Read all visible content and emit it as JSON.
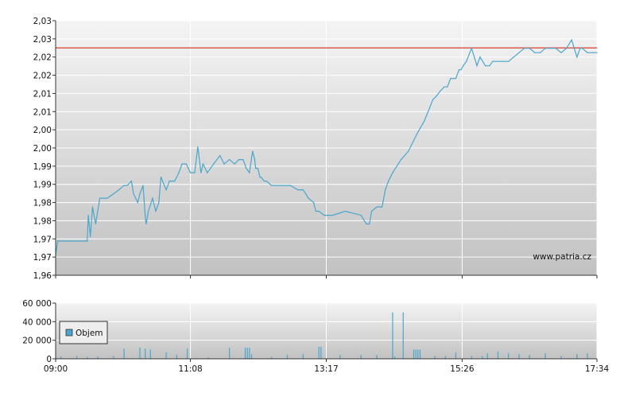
{
  "chart_data": [
    {
      "type": "line",
      "title": "",
      "xlabel": "",
      "ylabel": "",
      "ylim": [
        1.96,
        2.03
      ],
      "y_ticks": [
        "1,96",
        "1,97",
        "1,97",
        "1,98",
        "1,98",
        "1,99",
        "1,99",
        "2,00",
        "2,00",
        "2,01",
        "2,01",
        "2,02",
        "2,02",
        "2,03",
        "2,03"
      ],
      "x_tick_labels": [
        "09:00",
        "11:08",
        "13:17",
        "15:26",
        "17:34"
      ],
      "reference_line": {
        "value": 2.0225,
        "color": "#e05a4a"
      },
      "watermark": "www.patria.cz",
      "grid": true,
      "series": [
        {
          "color": "#4aa6cc",
          "x": [
            "09:00",
            "09:02",
            "09:08",
            "09:30",
            "09:31",
            "09:33",
            "09:35",
            "09:38",
            "09:42",
            "09:49",
            "09:55",
            "10:00",
            "10:05",
            "10:08",
            "10:12",
            "10:14",
            "10:18",
            "10:20",
            "10:23",
            "10:25",
            "10:26",
            "10:28",
            "10:32",
            "10:35",
            "10:38",
            "10:40",
            "10:45",
            "10:48",
            "10:53",
            "10:57",
            "11:00",
            "11:04",
            "11:08",
            "11:12",
            "11:15",
            "11:18",
            "11:20",
            "11:24",
            "11:30",
            "11:36",
            "11:40",
            "11:45",
            "11:50",
            "11:54",
            "11:58",
            "12:01",
            "12:04",
            "12:07",
            "12:09",
            "12:10",
            "12:12",
            "12:14",
            "12:15",
            "12:18",
            "12:20",
            "12:25",
            "12:30",
            "12:35",
            "12:43",
            "12:50",
            "12:55",
            "13:00",
            "13:05",
            "13:07",
            "13:10",
            "13:15",
            "13:17",
            "13:23",
            "13:35",
            "13:50",
            "13:55",
            "13:58",
            "14:00",
            "14:05",
            "14:10",
            "14:13",
            "14:16",
            "14:20",
            "14:28",
            "14:35",
            "14:43",
            "14:50",
            "14:55",
            "14:58",
            "15:02",
            "15:05",
            "15:09",
            "15:12",
            "15:15",
            "15:18",
            "15:20",
            "15:23",
            "15:25",
            "15:27",
            "15:30",
            "15:35",
            "15:40",
            "15:43",
            "15:48",
            "15:52",
            "15:55",
            "16:00",
            "16:05",
            "16:10",
            "16:15",
            "16:20",
            "16:25",
            "16:30",
            "16:35",
            "16:40",
            "16:45",
            "16:50",
            "16:55",
            "17:00",
            "17:05",
            "17:10",
            "17:15",
            "17:18",
            "17:20",
            "17:25",
            "17:30",
            "17:34"
          ],
          "values": [
            1.9655,
            1.9694,
            1.9694,
            1.9694,
            1.9765,
            1.9706,
            1.9788,
            1.9741,
            1.9812,
            1.9812,
            1.9824,
            1.9835,
            1.9847,
            1.9847,
            1.9859,
            1.9824,
            1.98,
            1.9824,
            1.9847,
            1.9765,
            1.9741,
            1.9776,
            1.9812,
            1.9776,
            1.98,
            1.987,
            1.9835,
            1.9859,
            1.9859,
            1.9882,
            1.9906,
            1.9906,
            1.9882,
            1.9882,
            1.9953,
            1.9882,
            1.9906,
            1.9882,
            1.9906,
            1.9929,
            1.9906,
            1.9918,
            1.9906,
            1.9918,
            1.9918,
            1.9894,
            1.9882,
            1.9941,
            1.9918,
            1.9894,
            1.9894,
            1.987,
            1.987,
            1.9859,
            1.9859,
            1.9847,
            1.9847,
            1.9847,
            1.9847,
            1.9835,
            1.9835,
            1.9812,
            1.98,
            1.9776,
            1.9776,
            1.9765,
            1.9765,
            1.9765,
            1.9776,
            1.9765,
            1.9741,
            1.9741,
            1.9776,
            1.9788,
            1.9788,
            1.9835,
            1.9859,
            1.9882,
            1.9918,
            1.9941,
            1.9988,
            2.0024,
            2.0059,
            2.0082,
            2.0094,
            2.0106,
            2.0118,
            2.0118,
            2.0141,
            2.0141,
            2.0141,
            2.0165,
            2.0165,
            2.0176,
            2.0188,
            2.0224,
            2.0176,
            2.02,
            2.0176,
            2.0176,
            2.0188,
            2.0188,
            2.0188,
            2.0188,
            2.02,
            2.0212,
            2.0224,
            2.0224,
            2.0212,
            2.0212,
            2.0224,
            2.0224,
            2.0224,
            2.0212,
            2.0224,
            2.0247,
            2.02,
            2.0224,
            2.0224,
            2.0212,
            2.0212,
            2.0212
          ]
        }
      ]
    },
    {
      "type": "bar",
      "title": "",
      "xlabel": "",
      "ylabel": "",
      "ylim": [
        0,
        60000
      ],
      "y_ticks": [
        "0",
        "20 000",
        "40 000",
        "60 000"
      ],
      "x_tick_labels": [
        "09:00",
        "11:08",
        "13:17",
        "15:26",
        "17:34"
      ],
      "legend": {
        "label": "Objem",
        "color": "#4aa6cc",
        "position": "left"
      },
      "series": [
        {
          "name": "Objem",
          "x": [
            "09:05",
            "09:20",
            "09:30",
            "09:40",
            "09:55",
            "10:05",
            "10:20",
            "10:25",
            "10:30",
            "10:45",
            "10:55",
            "11:05",
            "11:25",
            "11:45",
            "12:00",
            "12:02",
            "12:04",
            "12:06",
            "12:25",
            "12:40",
            "12:55",
            "13:10",
            "13:12",
            "13:30",
            "13:50",
            "14:05",
            "14:20",
            "14:22",
            "14:30",
            "14:40",
            "14:42",
            "14:44",
            "14:46",
            "15:00",
            "15:10",
            "15:20",
            "15:35",
            "15:45",
            "15:50",
            "16:00",
            "16:10",
            "16:20",
            "16:30",
            "16:45",
            "17:00",
            "17:15",
            "17:25"
          ],
          "values": [
            2500,
            3000,
            2000,
            2500,
            3000,
            11000,
            12000,
            11000,
            10000,
            7000,
            4000,
            11000,
            1500,
            12000,
            12000,
            12000,
            12000,
            5000,
            2000,
            4000,
            5000,
            13000,
            13000,
            4000,
            4000,
            4000,
            50000,
            2500,
            50000,
            10000,
            10000,
            10000,
            10000,
            3000,
            3000,
            7000,
            3000,
            3000,
            6000,
            8000,
            6000,
            5000,
            4000,
            6000,
            3000,
            5000,
            6000
          ]
        }
      ]
    }
  ]
}
